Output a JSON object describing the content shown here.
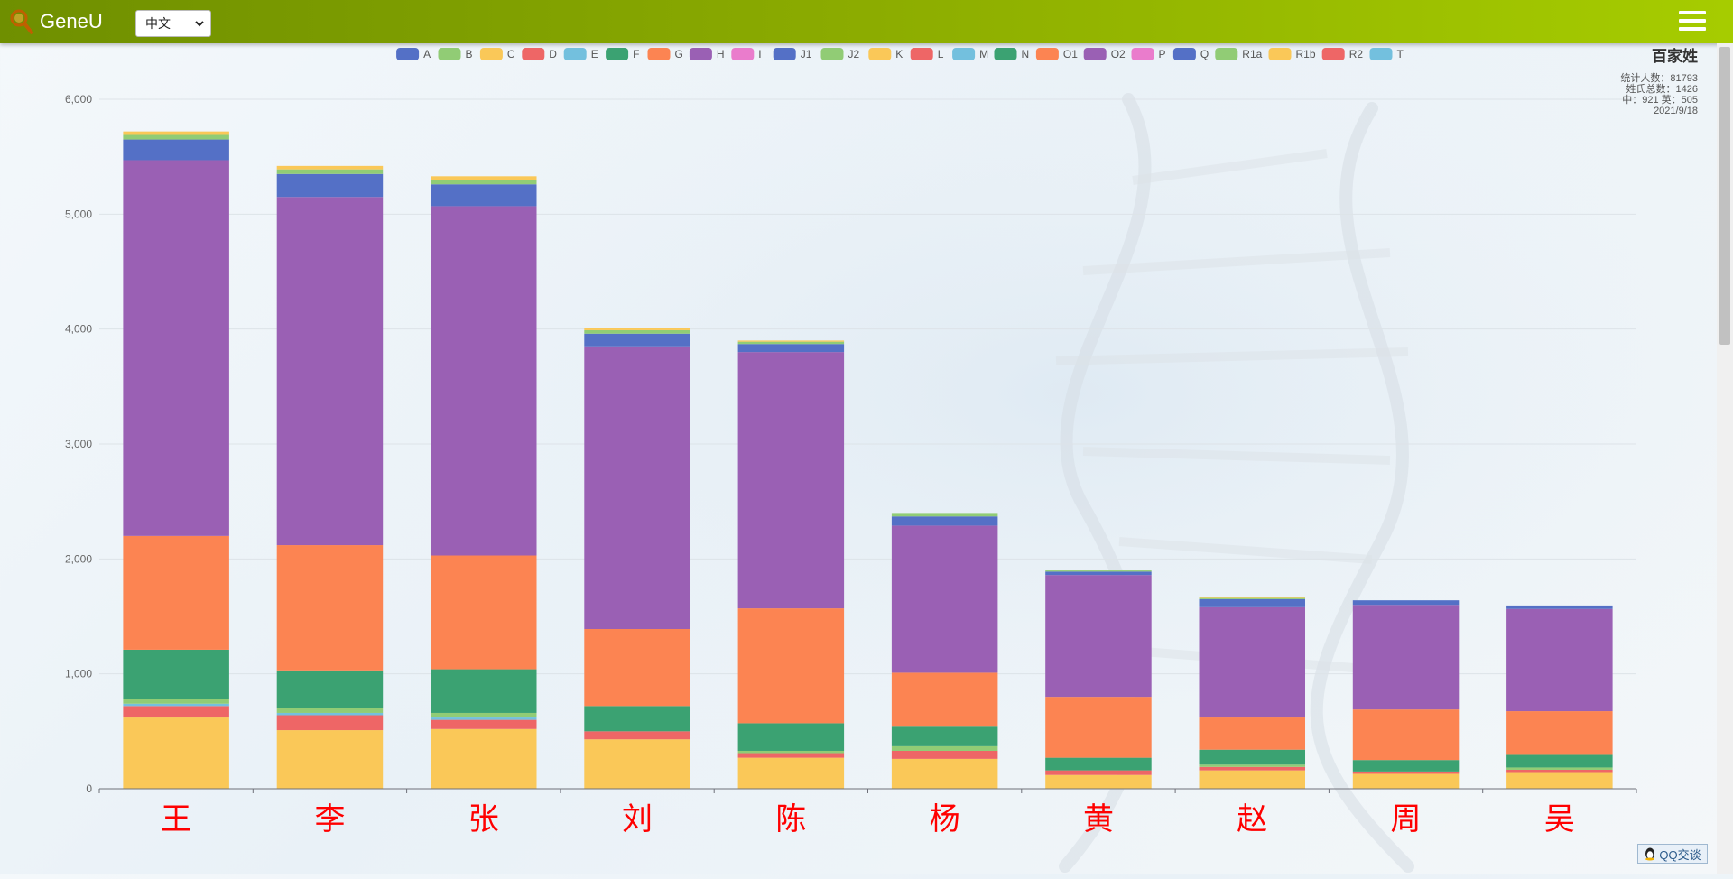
{
  "app": {
    "brand": "GeneU",
    "language": "中文",
    "menu_icon": "hamburger-icon",
    "search_icon": "magnifier-icon"
  },
  "stats": {
    "title": "百家姓",
    "line1": "统计人数：81793",
    "line2": "姓氏总数：1426",
    "line3": "中：921 英：505",
    "line4": "2021/9/18"
  },
  "qq": {
    "label": "QQ交谈",
    "icon": "qq-penguin-icon"
  },
  "colors": {
    "A": "#5470c6",
    "B": "#91cc75",
    "C": "#fac858",
    "D": "#ee6666",
    "E": "#73c0de",
    "F": "#3ba272",
    "G": "#fc8452",
    "H": "#9a60b4",
    "I": "#ea7ccc",
    "J1": "#5470c6",
    "J2": "#91cc75",
    "K": "#fac858",
    "L": "#ee6666",
    "M": "#73c0de",
    "N": "#3ba272",
    "O1": "#fc8452",
    "O2": "#9a60b4",
    "P": "#ea7ccc",
    "Q": "#5470c6",
    "R1a": "#91cc75",
    "R1b": "#fac858",
    "R2": "#ee6666",
    "T": "#73c0de"
  },
  "chart_data": {
    "type": "bar",
    "stacked": true,
    "categories": [
      "王",
      "李",
      "张",
      "刘",
      "陈",
      "杨",
      "黄",
      "赵",
      "周",
      "吴"
    ],
    "ylim": [
      0,
      6000
    ],
    "yticks": [
      "0",
      "1,000",
      "2,000",
      "3,000",
      "4,000",
      "5,000",
      "6,000"
    ],
    "grid": true,
    "legend_position": "top",
    "series": [
      {
        "name": "A",
        "values": [
          0,
          0,
          0,
          0,
          0,
          0,
          0,
          0,
          0,
          0
        ]
      },
      {
        "name": "B",
        "values": [
          0,
          0,
          0,
          0,
          0,
          0,
          0,
          0,
          0,
          0
        ]
      },
      {
        "name": "C",
        "values": [
          620,
          510,
          520,
          430,
          270,
          260,
          120,
          160,
          130,
          145
        ]
      },
      {
        "name": "D",
        "values": [
          100,
          130,
          80,
          70,
          40,
          70,
          40,
          30,
          20,
          20
        ]
      },
      {
        "name": "E",
        "values": [
          20,
          20,
          20,
          0,
          0,
          0,
          0,
          0,
          0,
          0
        ]
      },
      {
        "name": "F",
        "values": [
          0,
          0,
          0,
          0,
          0,
          0,
          0,
          0,
          0,
          0
        ]
      },
      {
        "name": "G",
        "values": [
          0,
          0,
          0,
          0,
          0,
          0,
          0,
          0,
          0,
          0
        ]
      },
      {
        "name": "H",
        "values": [
          0,
          0,
          0,
          0,
          0,
          0,
          0,
          0,
          0,
          0
        ]
      },
      {
        "name": "I",
        "values": [
          0,
          0,
          0,
          0,
          0,
          0,
          0,
          0,
          0,
          0
        ]
      },
      {
        "name": "J1",
        "values": [
          0,
          0,
          0,
          0,
          0,
          0,
          0,
          0,
          0,
          0
        ]
      },
      {
        "name": "J2",
        "values": [
          40,
          40,
          40,
          0,
          20,
          40,
          0,
          20,
          0,
          20
        ]
      },
      {
        "name": "K",
        "values": [
          0,
          0,
          0,
          0,
          0,
          0,
          0,
          0,
          0,
          0
        ]
      },
      {
        "name": "L",
        "values": [
          0,
          0,
          0,
          0,
          0,
          0,
          0,
          0,
          0,
          0
        ]
      },
      {
        "name": "M",
        "values": [
          0,
          0,
          0,
          0,
          0,
          0,
          0,
          0,
          0,
          0
        ]
      },
      {
        "name": "N",
        "values": [
          430,
          330,
          380,
          220,
          240,
          170,
          110,
          130,
          100,
          110
        ]
      },
      {
        "name": "O1",
        "values": [
          990,
          1090,
          990,
          670,
          1000,
          470,
          530,
          280,
          440,
          380
        ]
      },
      {
        "name": "O2",
        "values": [
          3270,
          3030,
          3040,
          2460,
          2230,
          1280,
          1060,
          960,
          910,
          890
        ]
      },
      {
        "name": "P",
        "values": [
          0,
          0,
          0,
          0,
          0,
          0,
          0,
          0,
          0,
          0
        ]
      },
      {
        "name": "Q",
        "values": [
          180,
          200,
          190,
          110,
          70,
          80,
          30,
          70,
          40,
          30
        ]
      },
      {
        "name": "R1a",
        "values": [
          40,
          40,
          40,
          30,
          20,
          30,
          10,
          10,
          0,
          0
        ]
      },
      {
        "name": "R1b",
        "values": [
          30,
          30,
          30,
          20,
          10,
          0,
          0,
          10,
          0,
          0
        ]
      },
      {
        "name": "R2",
        "values": [
          0,
          0,
          0,
          0,
          0,
          0,
          0,
          0,
          0,
          0
        ]
      },
      {
        "name": "T",
        "values": [
          0,
          0,
          0,
          0,
          0,
          0,
          0,
          0,
          0,
          0
        ]
      }
    ]
  }
}
